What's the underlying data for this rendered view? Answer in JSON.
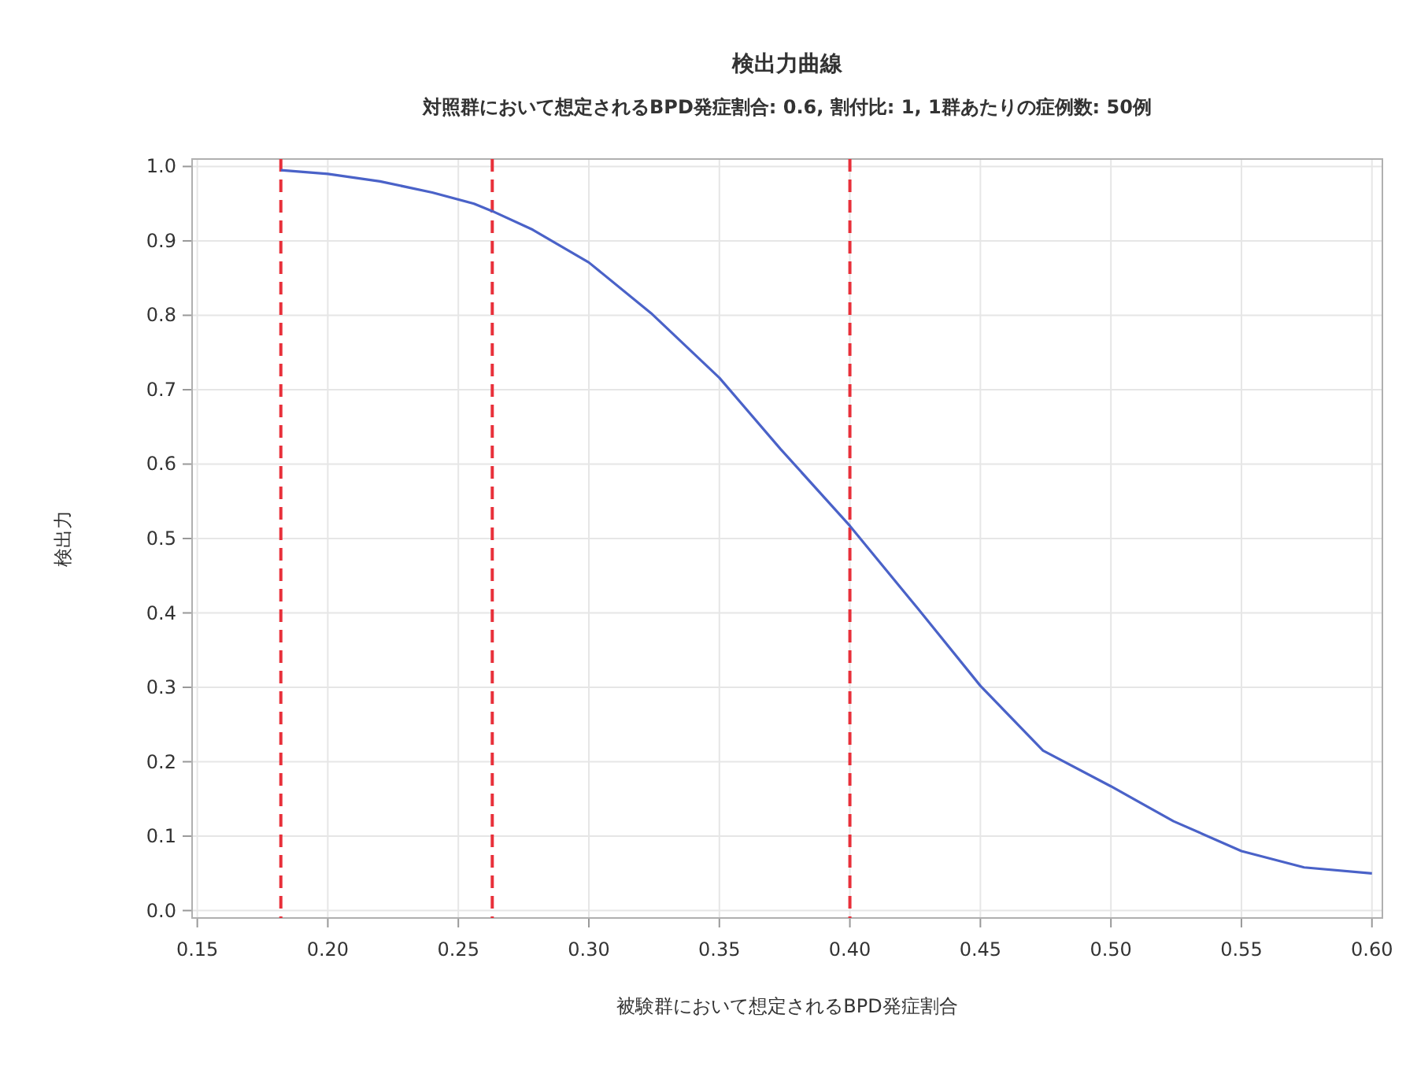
{
  "chart_data": {
    "type": "line",
    "title": "検出力曲線",
    "subtitle": "対照群において想定されるBPD発症割合: 0.6, 割付比: 1, 1群あたりの症例数: 50例",
    "xlabel": "被験群において想定されるBPD発症割合",
    "ylabel": "検出力",
    "x": [
      0.182,
      0.2,
      0.22,
      0.24,
      0.256,
      0.263,
      0.2785,
      0.3,
      0.3238,
      0.35,
      0.3735,
      0.4,
      0.426,
      0.45,
      0.474,
      0.5,
      0.524,
      0.55,
      0.574,
      0.6
    ],
    "series": [
      {
        "color": "#4a62c8",
        "values": [
          0.995,
          0.99,
          0.98,
          0.965,
          0.95,
          0.94,
          0.915,
          0.871,
          0.803,
          0.716,
          0.62,
          0.517,
          0.406,
          0.302,
          0.215,
          0.167,
          0.12,
          0.08,
          0.058,
          0.05
        ]
      }
    ],
    "xlim": [
      0.148,
      0.604
    ],
    "ylim": [
      -0.01,
      1.01
    ],
    "xticks": [
      0.15,
      {
        "value": 0.2,
        "label": "0.20"
      },
      0.25,
      {
        "value": 0.3,
        "label": "0.30"
      },
      0.35,
      {
        "value": 0.4,
        "label": "0.40"
      },
      0.45,
      {
        "value": 0.5,
        "label": "0.50"
      },
      0.55,
      {
        "value": 0.6,
        "label": "0.60"
      }
    ],
    "yticks": [
      {
        "value": 0,
        "label": "0.0"
      },
      0.1,
      0.2,
      0.3,
      0.4,
      0.5,
      0.6,
      0.7,
      0.8,
      0.9,
      {
        "value": 1,
        "label": "1.0"
      }
    ],
    "ref_lines": [
      {
        "axis": "x",
        "value": 0.182,
        "color": "#e8303a",
        "line_style": "dashed"
      },
      {
        "axis": "x",
        "value": 0.263,
        "color": "#e8303a",
        "line_style": "dashed"
      },
      {
        "axis": "x",
        "value": 0.4,
        "color": "#e8303a",
        "line_style": "dashed"
      }
    ],
    "grid": true
  }
}
